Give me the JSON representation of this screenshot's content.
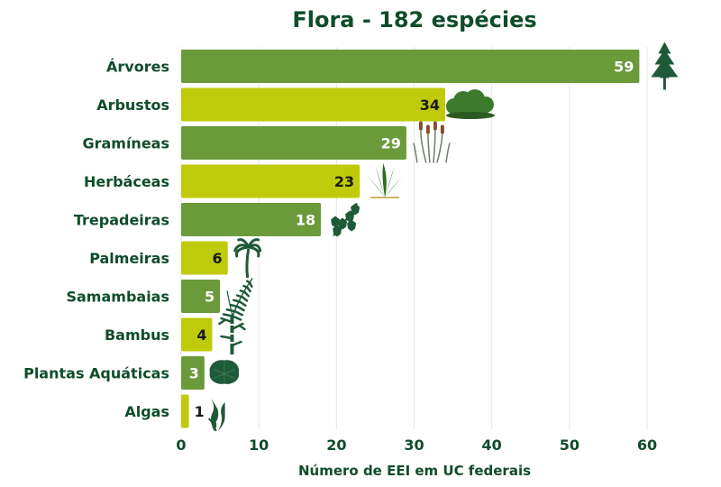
{
  "chart_data": {
    "type": "bar",
    "orientation": "horizontal",
    "title": "Flora - 182 espécies",
    "xlabel": "Número de EEI em UC federais",
    "ylabel": "",
    "xlim": [
      0,
      60
    ],
    "xticks": [
      0,
      10,
      20,
      30,
      40,
      50,
      60
    ],
    "grid": true,
    "categories": [
      "Árvores",
      "Arbustos",
      "Gramíneas",
      "Herbáceas",
      "Trepadeiras",
      "Palmeiras",
      "Samambaias",
      "Bambus",
      "Plantas Aquáticas",
      "Algas"
    ],
    "values": [
      59,
      34,
      29,
      23,
      18,
      6,
      5,
      4,
      3,
      1
    ],
    "icons": [
      "pine-tree-icon",
      "shrub-icon",
      "grass-cattail-icon",
      "herbaceous-plant-icon",
      "vine-icon",
      "palm-tree-icon",
      "fern-icon",
      "bamboo-icon",
      "aquatic-plant-icon",
      "algae-icon"
    ],
    "colors": {
      "bar_dark": "#6a9a3a",
      "bar_light": "#bfcb0a",
      "text": "#0f4d2a",
      "icon": "#1f5a38",
      "grid": "#e5e5e5"
    }
  }
}
